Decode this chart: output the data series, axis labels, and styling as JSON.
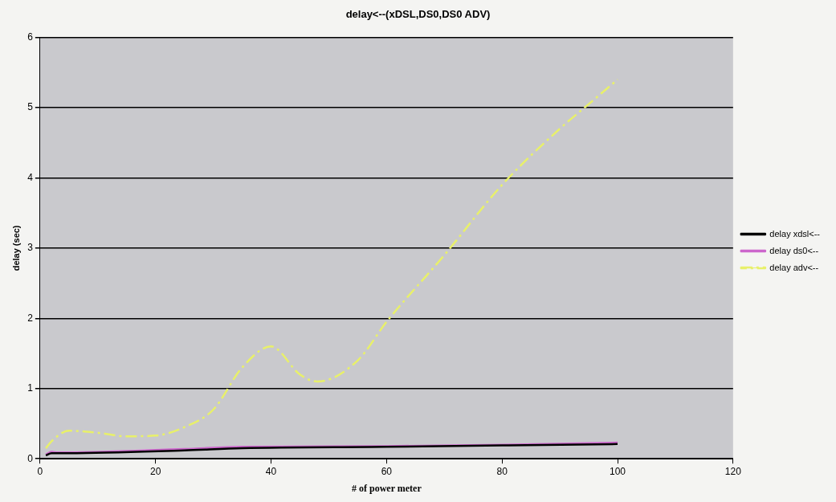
{
  "chart_data": {
    "type": "line",
    "title": "delay<--(xDSL,DS0,DS0 ADV)",
    "xlabel": "# of power meter",
    "ylabel": "delay (sec)",
    "xlim": [
      0,
      120
    ],
    "xticks": [
      0,
      20,
      40,
      60,
      80,
      100,
      120
    ],
    "ylim": [
      0,
      6
    ],
    "yticks": [
      0,
      1,
      2,
      3,
      4,
      5,
      6
    ],
    "grid": "y",
    "legend": "right",
    "marker": "none",
    "series": [
      {
        "name": "delay xdsl<--",
        "color": "#000000",
        "line_style": "solid",
        "x": [
          1,
          2,
          5,
          25,
          35,
          60,
          80,
          100
        ],
        "values": [
          0.05,
          0.08,
          0.08,
          0.12,
          0.15,
          0.17,
          0.19,
          0.21
        ]
      },
      {
        "name": "delay ds0<--",
        "color": "#cc66cc",
        "line_style": "solid",
        "x": [
          1,
          2,
          3,
          25,
          35,
          60,
          80,
          100
        ],
        "values": [
          0.06,
          0.1,
          0.09,
          0.14,
          0.17,
          0.18,
          0.2,
          0.23
        ]
      },
      {
        "name": "delay adv<--",
        "color": "#e8f06a",
        "line_style": "dashed",
        "x": [
          1,
          2,
          5,
          10,
          15,
          20,
          25,
          30,
          35,
          40,
          45,
          48,
          55,
          60,
          70,
          80,
          90,
          95,
          100
        ],
        "values": [
          0.15,
          0.25,
          0.4,
          0.37,
          0.32,
          0.33,
          0.45,
          0.7,
          1.3,
          1.6,
          1.2,
          1.1,
          1.4,
          1.95,
          2.9,
          3.9,
          4.7,
          5.05,
          5.4
        ]
      }
    ]
  }
}
